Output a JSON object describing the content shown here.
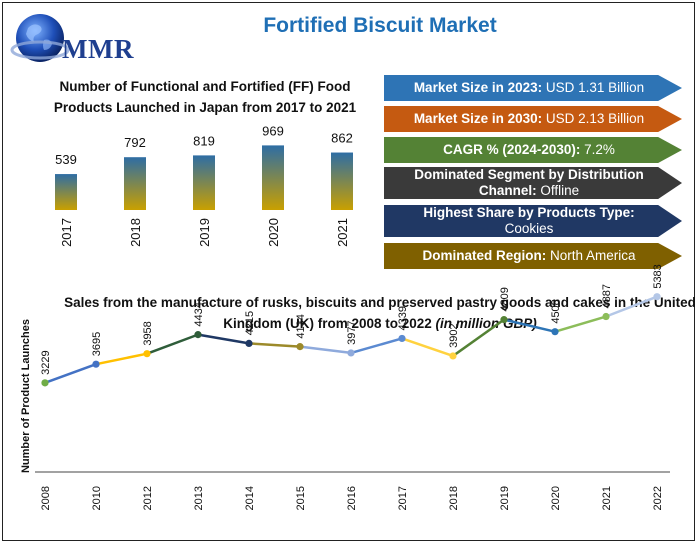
{
  "header": {
    "logo_text": "MMR",
    "title": "Fortified Biscuit Market"
  },
  "info_boxes": [
    {
      "label": "Market Size in 2023:",
      "value": " USD 1.31 Billion",
      "color": "#2e74b5"
    },
    {
      "label": "Market Size in 2030:",
      "value": " USD 2.13 Billion",
      "color": "#c55a11"
    },
    {
      "label": "CAGR % (2024-2030):",
      "value": " 7.2%",
      "color": "#548235"
    },
    {
      "label": "Dominated Segment by Distribution Channel:",
      "value": " Offline",
      "color": "#3a3a3a"
    },
    {
      "label": "Highest Share by Products Type:",
      "value": " Cookies",
      "color": "#203864"
    },
    {
      "label": "Dominated Region:",
      "value": " North America",
      "color": "#7f6000"
    }
  ],
  "chart_data": [
    {
      "type": "bar",
      "title": "Number of Functional and Fortified (FF) Food Products Launched in Japan from 2017 to 2021",
      "categories": [
        "2017",
        "2018",
        "2019",
        "2020",
        "2021"
      ],
      "values": [
        539,
        792,
        819,
        969,
        862
      ],
      "data_labels": [
        "539",
        "792",
        "819",
        "969",
        "862"
      ],
      "ylim": [
        0,
        1200
      ],
      "grid": false,
      "colors": {
        "top": "#2e6da4",
        "bottom": "#c9a000"
      }
    },
    {
      "type": "line",
      "title_main": "Sales from the manufacture of rusks, biscuits and preserved pastry goods and cakes in the United Kingdom (UK) from 2008 to 2022 ",
      "title_italic": "(in million GBP)",
      "ylabel": "Number of Product Launches",
      "x": [
        "2008",
        "2010",
        "2012",
        "2013",
        "2014",
        "2015",
        "2016",
        "2017",
        "2018",
        "2019",
        "2020",
        "2021",
        "2022"
      ],
      "values": [
        3229,
        3695,
        3958,
        4434,
        4215,
        4134,
        3977,
        4339,
        3902,
        4809,
        4508,
        4887,
        5383
      ],
      "data_labels": [
        "3229",
        "3695",
        "3958",
        "4434",
        "4215",
        "4134",
        "3977",
        "4339",
        "3902",
        "4809",
        "4508",
        "4887",
        "5383"
      ],
      "point_colors": [
        "#70ad47",
        "#4472c4",
        "#ffc000",
        "#2f5d3a",
        "#1f3864",
        "#9c8a2a",
        "#8faadc",
        "#5b8ad1",
        "#ffd23f",
        "#548235",
        "#2e75b6",
        "#8cbd5a",
        "#b4c7e7"
      ],
      "ylim": [
        1000,
        7000
      ],
      "grid": false
    }
  ]
}
